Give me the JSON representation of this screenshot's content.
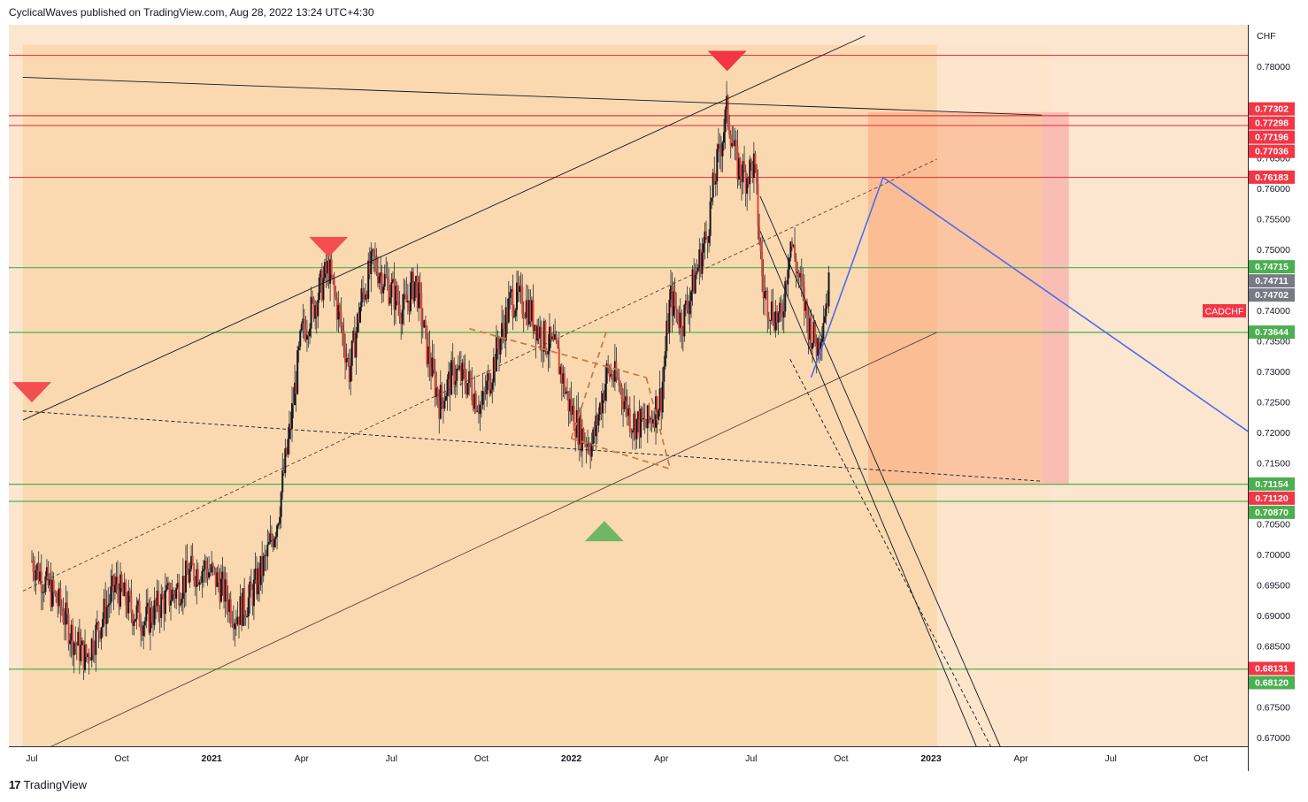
{
  "header": {
    "publisher": "CyclicalWaves published on TradingView.com, Aug 28, 2022 13:24 UTC+4:30"
  },
  "footer": {
    "brand": "TradingView"
  },
  "chart_data": {
    "type": "candlestick",
    "symbol": "CADCHF",
    "currency": "CHF",
    "ylim": [
      0.6675,
      0.7835
    ],
    "y_ticks": [
      0.78,
      0.765,
      0.76,
      0.755,
      0.75,
      0.745,
      0.74,
      0.735,
      0.73,
      0.725,
      0.72,
      0.715,
      0.705,
      0.7,
      0.695,
      0.69,
      0.685,
      0.675,
      0.67
    ],
    "y_tick_labels": [
      "0.78000",
      "0.76500",
      "0.76000",
      "0.75500",
      "0.75000",
      "0.74500",
      "0.74000",
      "0.73500",
      "0.73000",
      "0.72500",
      "0.72000",
      "0.71500",
      "0.70500",
      "0.70000",
      "0.69500",
      "0.69000",
      "0.68500",
      "0.67500",
      "0.67000"
    ],
    "x_labels": [
      "Jul",
      "Oct",
      "2021",
      "Apr",
      "Jul",
      "Oct",
      "2022",
      "Apr",
      "Jul",
      "Oct",
      "2023",
      "Apr",
      "Jul",
      "Oct"
    ],
    "x_label_months": [
      0,
      3,
      6,
      9,
      12,
      15,
      18,
      21,
      24,
      27,
      30,
      33,
      36,
      39
    ],
    "price_tags": [
      {
        "value": 0.77302,
        "label": "0.77302",
        "color": "#f23645"
      },
      {
        "value": 0.77298,
        "label": "0.77298",
        "color": "#f23645"
      },
      {
        "value": 0.77196,
        "label": "0.77196",
        "color": "#f23645"
      },
      {
        "value": 0.77036,
        "label": "0.77036",
        "color": "#f23645"
      },
      {
        "value": 0.76183,
        "label": "0.76183",
        "color": "#f23645"
      },
      {
        "value": 0.74715,
        "label": "0.74715",
        "color": "#4caf50"
      },
      {
        "value": 0.74711,
        "label": "0.74711",
        "color": "#787b86"
      },
      {
        "value": 0.74702,
        "label": "0.74702",
        "color": "#787b86"
      },
      {
        "value": 0.73644,
        "label": "0.73644",
        "color": "#4caf50"
      },
      {
        "value": 0.71154,
        "label": "0.71154",
        "color": "#4caf50"
      },
      {
        "value": 0.7112,
        "label": "0.71120",
        "color": "#f23645"
      },
      {
        "value": 0.7087,
        "label": "0.70870",
        "color": "#4caf50"
      },
      {
        "value": 0.68131,
        "label": "0.68131",
        "color": "#f23645"
      },
      {
        "value": 0.6812,
        "label": "0.68120",
        "color": "#4caf50"
      }
    ],
    "horizontal_lines": [
      {
        "value": 0.7818,
        "color": "#f23645"
      },
      {
        "value": 0.7719,
        "color": "#f23645"
      },
      {
        "value": 0.7703,
        "color": "#f23645"
      },
      {
        "value": 0.7618,
        "color": "#f23645"
      },
      {
        "value": 0.747,
        "color": "#4caf50"
      },
      {
        "value": 0.7364,
        "color": "#4caf50"
      },
      {
        "value": 0.7115,
        "color": "#4caf50"
      },
      {
        "value": 0.7087,
        "color": "#4caf50"
      },
      {
        "value": 0.6812,
        "color": "#4caf50"
      }
    ],
    "trend_lines": [
      {
        "from": [
          -0.3,
          0.7782
        ],
        "to": [
          33.7,
          0.772
        ],
        "color": "#131722",
        "dash": false
      },
      {
        "from": [
          -0.3,
          0.7235
        ],
        "to": [
          33.7,
          0.712
        ],
        "color": "#131722",
        "dash": true
      },
      {
        "from": [
          -0.3,
          0.722
        ],
        "to": [
          27.8,
          0.785
        ],
        "color": "#131722",
        "dash": false
      },
      {
        "from": [
          -0.3,
          0.694
        ],
        "to": [
          30.2,
          0.7648
        ],
        "color": "#5d4037",
        "dash": true
      },
      {
        "from": [
          0.2,
          0.6675
        ],
        "to": [
          30.2,
          0.7364
        ],
        "color": "#5d4037",
        "dash": false
      },
      {
        "from": [
          24.3,
          0.7587
        ],
        "to": [
          32.4,
          0.6675
        ],
        "color": "#131722",
        "dash": false
      },
      {
        "from": [
          24.3,
          0.753
        ],
        "to": [
          31.6,
          0.6675
        ],
        "color": "#131722",
        "dash": false
      },
      {
        "from": [
          25.3,
          0.732
        ],
        "to": [
          32.1,
          0.6675
        ],
        "color": "#131722",
        "dash": true
      },
      {
        "from": [
          14.6,
          0.737
        ],
        "to": [
          20.5,
          0.729
        ],
        "color": "#c77d4a",
        "dash": true
      },
      {
        "from": [
          18.0,
          0.719
        ],
        "to": [
          21.3,
          0.714
        ],
        "color": "#c77d4a",
        "dash": true
      },
      {
        "from": [
          18.0,
          0.719
        ],
        "to": [
          19.2,
          0.737
        ],
        "color": "#c77d4a",
        "dash": true
      },
      {
        "from": [
          20.5,
          0.729
        ],
        "to": [
          21.3,
          0.714
        ],
        "color": "#c77d4a",
        "dash": true
      }
    ],
    "projection": [
      [
        26.0,
        0.729
      ],
      [
        28.4,
        0.7618
      ],
      [
        41.5,
        0.717
      ]
    ],
    "zones": [
      {
        "x0": -0.3,
        "x1": 30.2,
        "y0": 0.6675,
        "y1": 0.7835,
        "color": "#f9c98a",
        "opacity": 0.45
      },
      {
        "x0": 30.2,
        "x1": 34.0,
        "y0": 0.6675,
        "y1": 0.7835,
        "color": "#fbe3c8",
        "opacity": 0.5
      },
      {
        "x0": 27.9,
        "x1": 33.7,
        "y0": 0.7115,
        "y1": 0.7725,
        "color": "#fb9e73",
        "opacity": 0.45
      },
      {
        "x0": 33.7,
        "x1": 34.6,
        "y0": 0.7115,
        "y1": 0.7725,
        "color": "#f5a3a3",
        "opacity": 0.6
      },
      {
        "x0": 40.6,
        "x1": 41.8,
        "y0": 0.6812,
        "y1": 0.7725,
        "color": "#f58f8f",
        "opacity": 0.55
      }
    ],
    "markers": [
      {
        "type": "down",
        "x": 9.9,
        "y": 0.749,
        "color": "#f44f4f"
      },
      {
        "type": "down",
        "x": 23.2,
        "y": 0.7795,
        "color": "#f23645"
      },
      {
        "type": "down",
        "x": 0.0,
        "y": 0.7252,
        "color": "#f44f4f"
      },
      {
        "type": "up",
        "x": 19.1,
        "y": 0.7052,
        "color": "#6fb765"
      }
    ],
    "waypoints": [
      [
        0.0,
        0.699
      ],
      [
        0.5,
        0.695
      ],
      [
        1.0,
        0.691
      ],
      [
        1.4,
        0.686
      ],
      [
        1.8,
        0.683
      ],
      [
        2.3,
        0.689
      ],
      [
        2.8,
        0.695
      ],
      [
        3.3,
        0.691
      ],
      [
        3.8,
        0.689
      ],
      [
        4.3,
        0.692
      ],
      [
        4.8,
        0.694
      ],
      [
        5.3,
        0.697
      ],
      [
        5.8,
        0.698
      ],
      [
        6.3,
        0.695
      ],
      [
        6.8,
        0.69
      ],
      [
        7.3,
        0.693
      ],
      [
        7.8,
        0.699
      ],
      [
        8.2,
        0.706
      ],
      [
        8.6,
        0.72
      ],
      [
        9.0,
        0.736
      ],
      [
        9.5,
        0.742
      ],
      [
        9.9,
        0.747
      ],
      [
        10.3,
        0.738
      ],
      [
        10.6,
        0.73
      ],
      [
        11.0,
        0.742
      ],
      [
        11.4,
        0.748
      ],
      [
        11.9,
        0.744
      ],
      [
        12.4,
        0.74
      ],
      [
        12.8,
        0.745
      ],
      [
        13.2,
        0.733
      ],
      [
        13.6,
        0.725
      ],
      [
        14.1,
        0.73
      ],
      [
        14.6,
        0.728
      ],
      [
        15.0,
        0.724
      ],
      [
        15.5,
        0.733
      ],
      [
        16.0,
        0.742
      ],
      [
        16.5,
        0.741
      ],
      [
        17.0,
        0.736
      ],
      [
        17.5,
        0.733
      ],
      [
        17.9,
        0.725
      ],
      [
        18.3,
        0.72
      ],
      [
        18.7,
        0.718
      ],
      [
        19.2,
        0.73
      ],
      [
        19.6,
        0.728
      ],
      [
        20.0,
        0.722
      ],
      [
        20.5,
        0.721
      ],
      [
        21.0,
        0.726
      ],
      [
        21.3,
        0.742
      ],
      [
        21.7,
        0.738
      ],
      [
        22.1,
        0.745
      ],
      [
        22.5,
        0.752
      ],
      [
        22.8,
        0.762
      ],
      [
        23.2,
        0.773
      ],
      [
        23.5,
        0.764
      ],
      [
        23.8,
        0.762
      ],
      [
        24.1,
        0.764
      ],
      [
        24.4,
        0.743
      ],
      [
        24.7,
        0.74
      ],
      [
        25.0,
        0.738
      ],
      [
        25.3,
        0.752
      ],
      [
        25.6,
        0.745
      ],
      [
        25.9,
        0.738
      ],
      [
        26.2,
        0.734
      ],
      [
        26.6,
        0.744
      ]
    ]
  }
}
